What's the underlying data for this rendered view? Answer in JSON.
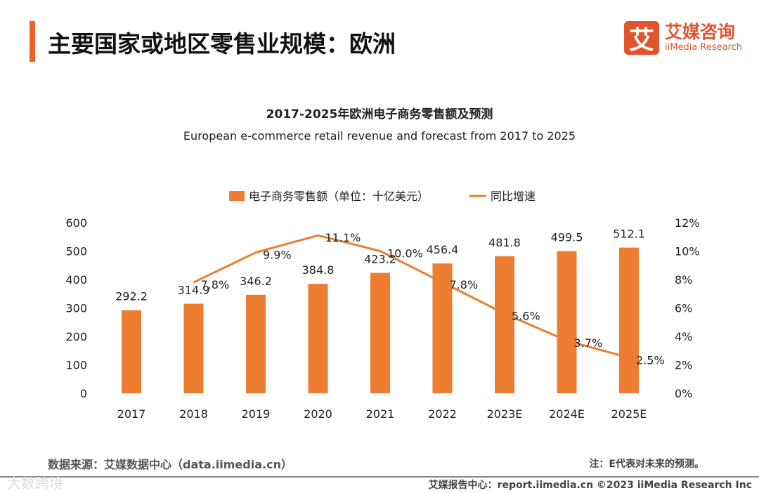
{
  "header": {
    "title": "主要国家或地区零售业规模：欧洲",
    "logo_mark": "艾",
    "logo_cn": "艾媒咨询",
    "logo_en": "iiMedia Research"
  },
  "chart_data": {
    "type": "bar+line",
    "title": "2017-2025年欧洲电子商务零售额及预测",
    "subtitle": "European e-commerce retail revenue and forecast from 2017 to 2025",
    "categories": [
      "2017",
      "2018",
      "2019",
      "2020",
      "2021",
      "2022",
      "2023E",
      "2024E",
      "2025E"
    ],
    "series": [
      {
        "name": "电子商务零售额（单位：十亿美元）",
        "type": "bar",
        "axis": "left",
        "color": "#ed7d31",
        "values": [
          292.2,
          314.9,
          346.2,
          384.8,
          423.2,
          456.4,
          481.8,
          499.5,
          512.1
        ]
      },
      {
        "name": "同比增速",
        "type": "line",
        "axis": "right",
        "color": "#ed7d31",
        "values": [
          null,
          7.8,
          9.9,
          11.1,
          10.0,
          7.8,
          5.6,
          3.7,
          2.5
        ]
      }
    ],
    "left_ticks": [
      "0",
      "100",
      "200",
      "300",
      "400",
      "500",
      "600"
    ],
    "right_ticks": [
      "0%",
      "2%",
      "4%",
      "6%",
      "8%",
      "10%",
      "12%"
    ],
    "ylim_left": [
      0,
      600
    ],
    "ylim_right": [
      0,
      12
    ],
    "legend": "top-center",
    "grid": false
  },
  "footer": {
    "source": "数据来源：艾媒数据中心（data.iimedia.cn）",
    "note": "注：E代表对未来的预测。",
    "copyright": "艾媒报告中心：report.iimedia.cn  ©2023  iiMedia Research Inc",
    "watermark": "大数跨境"
  }
}
